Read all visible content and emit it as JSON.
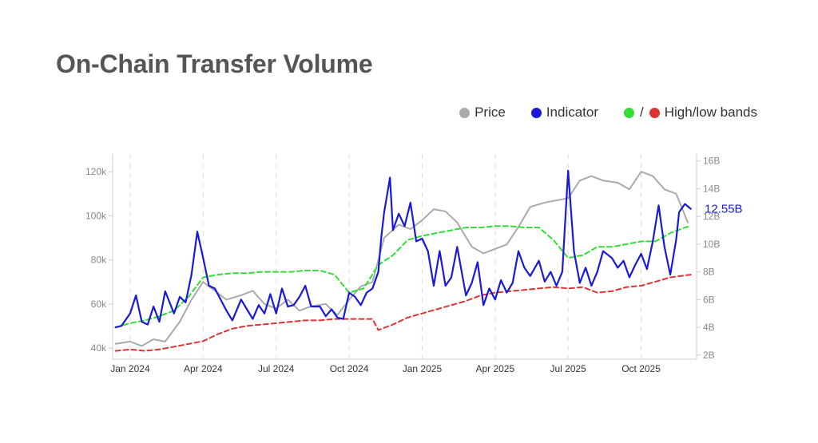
{
  "title": "On-Chain Transfer Volume",
  "legend": {
    "price_label": "Price",
    "indicator_label": "Indicator",
    "bands_sep": "/",
    "bands_label": "High/low bands"
  },
  "colors": {
    "price": "#aaaaaa",
    "indicator": "#1a1ad6",
    "high_band": "#33dd33",
    "low_band": "#dd3333",
    "axis": "#cccccc",
    "grid": "#e0e0e0"
  },
  "chart_data": {
    "type": "line",
    "x_ticks": [
      "Jan 2024",
      "Apr 2024",
      "Jul 2024",
      "Oct 2024",
      "Jan 2025",
      "Apr 2025",
      "Jul 2025",
      "Oct 2025"
    ],
    "x_tick_months": [
      2024.0,
      2024.25,
      2024.5,
      2024.75,
      2025.0,
      2025.25,
      2025.5,
      2025.75
    ],
    "xlim": [
      2023.94,
      2025.94
    ],
    "y_left": {
      "ticks": [
        "40k",
        "60k",
        "80k",
        "100k",
        "120k"
      ],
      "tick_values": [
        40000,
        60000,
        80000,
        100000,
        120000
      ],
      "lim": [
        35000,
        128000
      ]
    },
    "y_right": {
      "ticks": [
        "2B",
        "4B",
        "6B",
        "8B",
        "10B",
        "12B",
        "14B",
        "16B"
      ],
      "tick_values": [
        2,
        4,
        6,
        8,
        10,
        12,
        14,
        16
      ],
      "lim": [
        1.7,
        16.5
      ]
    },
    "last_value_label": "12.55B",
    "last_value": 12.55,
    "grid": "vertical-dashed",
    "legend_position": "top-right",
    "series": [
      {
        "name": "Price",
        "axis": "left",
        "x": [
          2023.95,
          2024.0,
          2024.04,
          2024.08,
          2024.12,
          2024.17,
          2024.21,
          2024.25,
          2024.29,
          2024.33,
          2024.38,
          2024.42,
          2024.46,
          2024.5,
          2024.54,
          2024.58,
          2024.62,
          2024.67,
          2024.71,
          2024.75,
          2024.79,
          2024.83,
          2024.87,
          2024.92,
          2024.96,
          2025.0,
          2025.04,
          2025.08,
          2025.12,
          2025.17,
          2025.21,
          2025.25,
          2025.29,
          2025.33,
          2025.37,
          2025.42,
          2025.46,
          2025.5,
          2025.54,
          2025.58,
          2025.62,
          2025.67,
          2025.71,
          2025.75,
          2025.79,
          2025.83,
          2025.87,
          2025.91
        ],
        "values": [
          42000,
          43000,
          41000,
          44000,
          43000,
          52000,
          62000,
          70000,
          66000,
          62000,
          64000,
          66000,
          60000,
          58000,
          62000,
          57000,
          59000,
          60000,
          55000,
          62000,
          68000,
          70000,
          90000,
          96000,
          94000,
          98000,
          103000,
          102000,
          97000,
          86000,
          83000,
          85000,
          87000,
          95000,
          104000,
          106000,
          107000,
          108000,
          116000,
          118000,
          116000,
          115000,
          112000,
          120000,
          118000,
          112000,
          110000,
          97000
        ]
      },
      {
        "name": "Indicator",
        "axis": "right",
        "x": [
          2023.95,
          2023.97,
          2024.0,
          2024.02,
          2024.04,
          2024.06,
          2024.08,
          2024.1,
          2024.12,
          2024.15,
          2024.17,
          2024.19,
          2024.21,
          2024.23,
          2024.25,
          2024.27,
          2024.29,
          2024.31,
          2024.33,
          2024.35,
          2024.38,
          2024.4,
          2024.42,
          2024.44,
          2024.46,
          2024.48,
          2024.5,
          2024.52,
          2024.54,
          2024.56,
          2024.58,
          2024.6,
          2024.62,
          2024.65,
          2024.67,
          2024.69,
          2024.71,
          2024.73,
          2024.75,
          2024.77,
          2024.79,
          2024.81,
          2024.83,
          2024.85,
          2024.86,
          2024.87,
          2024.89,
          2024.9,
          2024.92,
          2024.94,
          2024.96,
          2024.98,
          2025.0,
          2025.02,
          2025.04,
          2025.06,
          2025.08,
          2025.1,
          2025.12,
          2025.15,
          2025.17,
          2025.19,
          2025.21,
          2025.23,
          2025.25,
          2025.27,
          2025.29,
          2025.31,
          2025.33,
          2025.35,
          2025.37,
          2025.4,
          2025.42,
          2025.44,
          2025.46,
          2025.48,
          2025.5,
          2025.52,
          2025.54,
          2025.56,
          2025.58,
          2025.6,
          2025.62,
          2025.65,
          2025.67,
          2025.69,
          2025.71,
          2025.73,
          2025.75,
          2025.77,
          2025.79,
          2025.81,
          2025.83,
          2025.85,
          2025.87,
          2025.88,
          2025.9,
          2025.92
        ],
        "values": [
          4.0,
          4.1,
          5.0,
          6.3,
          4.4,
          4.2,
          5.5,
          4.4,
          6.6,
          5.0,
          6.2,
          5.8,
          7.8,
          10.9,
          9.0,
          7.0,
          6.8,
          6.0,
          5.2,
          4.5,
          6.0,
          5.3,
          4.6,
          5.6,
          5.0,
          6.4,
          5.0,
          6.8,
          5.5,
          5.6,
          6.2,
          7.0,
          5.5,
          5.5,
          4.8,
          5.3,
          4.7,
          4.6,
          6.5,
          6.2,
          5.6,
          6.5,
          6.8,
          8.0,
          10.5,
          12.3,
          14.8,
          11.0,
          12.2,
          11.3,
          13.0,
          10.2,
          10.4,
          9.5,
          7.0,
          9.5,
          7.0,
          7.6,
          9.8,
          6.3,
          7.2,
          8.7,
          5.6,
          6.8,
          6.0,
          7.4,
          6.5,
          7.2,
          9.5,
          8.3,
          7.7,
          8.8,
          7.3,
          8.0,
          7.0,
          8.0,
          15.3,
          9.5,
          7.2,
          8.3,
          7.0,
          8.0,
          9.5,
          9.0,
          8.3,
          8.8,
          7.6,
          8.5,
          9.3,
          8.2,
          10.2,
          12.8,
          9.8,
          7.8,
          10.3,
          12.3,
          12.9,
          12.55
        ]
      },
      {
        "name": "High band",
        "axis": "right",
        "x": [
          2023.95,
          2024.0,
          2024.05,
          2024.1,
          2024.15,
          2024.2,
          2024.25,
          2024.3,
          2024.35,
          2024.4,
          2024.45,
          2024.5,
          2024.55,
          2024.6,
          2024.65,
          2024.7,
          2024.75,
          2024.8,
          2024.85,
          2024.9,
          2024.95,
          2025.0,
          2025.05,
          2025.1,
          2025.15,
          2025.2,
          2025.25,
          2025.3,
          2025.35,
          2025.4,
          2025.45,
          2025.5,
          2025.55,
          2025.6,
          2025.65,
          2025.7,
          2025.75,
          2025.8,
          2025.85,
          2025.9,
          2025.92
        ],
        "values": [
          4.0,
          4.3,
          4.5,
          4.8,
          5.2,
          6.2,
          7.6,
          7.8,
          7.9,
          7.9,
          8.0,
          8.0,
          8.0,
          8.1,
          8.1,
          7.8,
          6.5,
          6.8,
          8.5,
          9.2,
          10.3,
          10.6,
          10.8,
          11.0,
          11.2,
          11.2,
          11.3,
          11.3,
          11.2,
          11.2,
          10.3,
          9.0,
          9.2,
          9.8,
          9.8,
          10.0,
          10.2,
          10.2,
          10.8,
          11.2,
          11.3
        ]
      },
      {
        "name": "Low band",
        "axis": "right",
        "x": [
          2023.95,
          2024.0,
          2024.05,
          2024.1,
          2024.15,
          2024.2,
          2024.25,
          2024.3,
          2024.35,
          2024.4,
          2024.45,
          2024.5,
          2024.55,
          2024.6,
          2024.65,
          2024.7,
          2024.75,
          2024.8,
          2024.83,
          2024.85,
          2024.9,
          2024.95,
          2025.0,
          2025.05,
          2025.1,
          2025.15,
          2025.2,
          2025.25,
          2025.3,
          2025.35,
          2025.4,
          2025.45,
          2025.5,
          2025.55,
          2025.6,
          2025.65,
          2025.7,
          2025.75,
          2025.8,
          2025.85,
          2025.92
        ],
        "values": [
          2.3,
          2.4,
          2.3,
          2.4,
          2.6,
          2.8,
          3.0,
          3.5,
          3.9,
          4.1,
          4.2,
          4.3,
          4.4,
          4.5,
          4.5,
          4.6,
          4.6,
          4.6,
          4.6,
          3.8,
          4.2,
          4.7,
          5.0,
          5.3,
          5.6,
          5.9,
          6.3,
          6.5,
          6.6,
          6.7,
          6.8,
          6.9,
          6.8,
          6.9,
          6.5,
          6.6,
          6.9,
          7.0,
          7.3,
          7.6,
          7.8
        ]
      }
    ]
  }
}
